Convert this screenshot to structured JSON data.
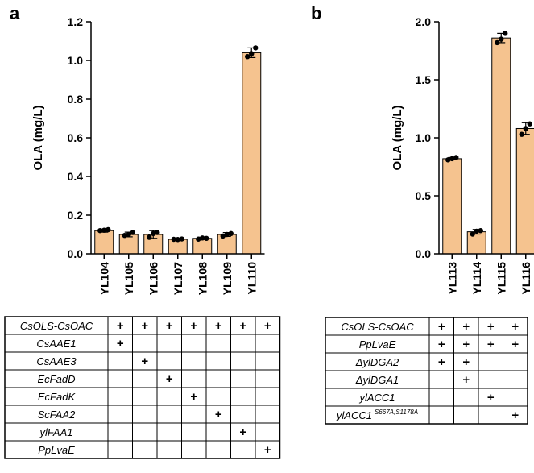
{
  "panels": [
    {
      "label": "a"
    },
    {
      "label": "b"
    }
  ],
  "chart_data": [
    {
      "type": "bar",
      "panel": "a",
      "ylabel": "OLA (mg/L)",
      "xlabel": "",
      "ylim": [
        0,
        1.2
      ],
      "yticks": [
        "0.0",
        "0.2",
        "0.4",
        "0.6",
        "0.8",
        "1.0",
        "1.2"
      ],
      "grid": false,
      "bar_color": "#f5c38f",
      "categories": [
        "YL104",
        "YL105",
        "YL106",
        "YL107",
        "YL108",
        "YL109",
        "YL110"
      ],
      "values": [
        0.12,
        0.1,
        0.1,
        0.075,
        0.08,
        0.1,
        1.04
      ],
      "errors": [
        0.008,
        0.012,
        0.02,
        0.004,
        0.006,
        0.01,
        0.025
      ],
      "points": [
        [
          0.12,
          0.125,
          0.122
        ],
        [
          0.095,
          0.11,
          0.1
        ],
        [
          0.085,
          0.11,
          0.105
        ],
        [
          0.075,
          0.077,
          0.074
        ],
        [
          0.076,
          0.08,
          0.082
        ],
        [
          0.092,
          0.105,
          0.1
        ],
        [
          1.02,
          1.065,
          1.035
        ]
      ],
      "table": {
        "rows": [
          {
            "label": "CsOLS-CsOAC",
            "marks": [
              "+",
              "+",
              "+",
              "+",
              "+",
              "+",
              "+"
            ]
          },
          {
            "label": "CsAAE1",
            "marks": [
              "+",
              "",
              "",
              "",
              "",
              "",
              ""
            ]
          },
          {
            "label": "CsAAE3",
            "marks": [
              "",
              "+",
              "",
              "",
              "",
              "",
              ""
            ]
          },
          {
            "label": "EcFadD",
            "marks": [
              "",
              "",
              "+",
              "",
              "",
              "",
              ""
            ]
          },
          {
            "label": "EcFadK",
            "marks": [
              "",
              "",
              "",
              "+",
              "",
              "",
              ""
            ]
          },
          {
            "label": "ScFAA2",
            "marks": [
              "",
              "",
              "",
              "",
              "+",
              "",
              ""
            ]
          },
          {
            "label": "ylFAA1",
            "marks": [
              "",
              "",
              "",
              "",
              "",
              "+",
              ""
            ]
          },
          {
            "label": "PpLvaE",
            "marks": [
              "",
              "",
              "",
              "",
              "",
              "",
              "+"
            ]
          }
        ]
      }
    },
    {
      "type": "bar",
      "panel": "b",
      "ylabel": "OLA (mg/L)",
      "xlabel": "",
      "ylim": [
        0,
        2.0
      ],
      "yticks": [
        "0.0",
        "0.5",
        "1.0",
        "1.5",
        "2.0"
      ],
      "grid": false,
      "bar_color": "#f5c38f",
      "categories": [
        "YL113",
        "YL114",
        "YL115",
        "YL116"
      ],
      "values": [
        0.82,
        0.19,
        1.86,
        1.08
      ],
      "errors": [
        0.01,
        0.02,
        0.04,
        0.05
      ],
      "points": [
        [
          0.81,
          0.83,
          0.82
        ],
        [
          0.17,
          0.2,
          0.195
        ],
        [
          1.82,
          1.9,
          1.85
        ],
        [
          1.03,
          1.12,
          1.08
        ]
      ],
      "table": {
        "rows": [
          {
            "label": "CsOLS-CsOAC",
            "marks": [
              "+",
              "+",
              "+",
              "+"
            ]
          },
          {
            "label": "PpLvaE",
            "marks": [
              "+",
              "+",
              "+",
              "+"
            ]
          },
          {
            "label": "ΔylDGA2",
            "marks": [
              "+",
              "+",
              "",
              ""
            ]
          },
          {
            "label": "ΔylDGA1",
            "marks": [
              "",
              "+",
              "",
              ""
            ]
          },
          {
            "label": "ylACC1",
            "marks": [
              "",
              "",
              "+",
              ""
            ]
          },
          {
            "label": "ylACC1",
            "label_sup": "S667A,S1178A",
            "marks": [
              "",
              "",
              "",
              "+"
            ]
          }
        ]
      }
    }
  ]
}
